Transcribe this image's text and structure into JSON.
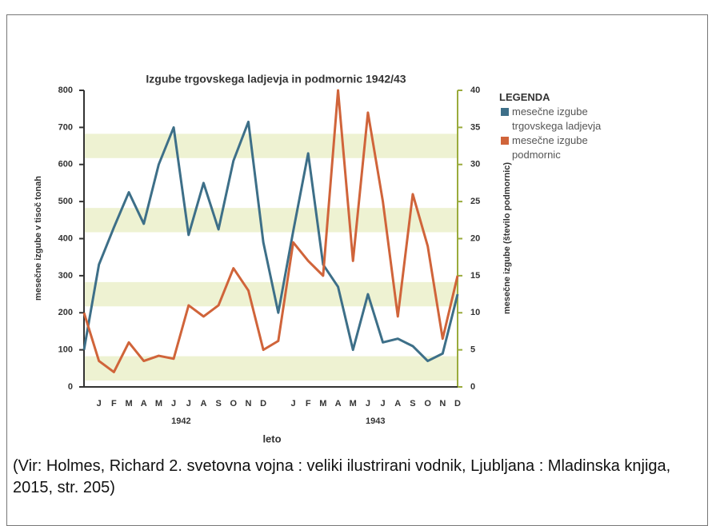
{
  "chart_data": {
    "type": "line",
    "title": "Izgube trgovskega ladjevja in podmornic 1942/43",
    "xlabel": "leto",
    "ylabel": "mesečne izgube v tisoč tonah",
    "y2label": "mesečne izgube (število podmornic)",
    "legend_title": "LEGENDA",
    "categories": [
      null,
      "J",
      "F",
      "M",
      "A",
      "M",
      "J",
      "J",
      "A",
      "S",
      "O",
      "N",
      "D",
      null,
      "J",
      "F",
      "M",
      "A",
      "M",
      "J",
      "J",
      "A",
      "S",
      "O",
      "N",
      "D"
    ],
    "x_groups": [
      "1942",
      "1943"
    ],
    "series": [
      {
        "name": "mesečne izgube trgovskega ladjevja",
        "color": "#3d6f88",
        "values": [
          100,
          330,
          430,
          525,
          440,
          600,
          700,
          410,
          550,
          425,
          610,
          715,
          390,
          200,
          420,
          630,
          330,
          270,
          100,
          250,
          120,
          130,
          110,
          70,
          90,
          250
        ]
      },
      {
        "name": "mesečne izgube podmornic",
        "color": "#d0643a",
        "axis": "y2",
        "values": [
          10,
          3.5,
          2,
          6,
          3.5,
          4.2,
          3.8,
          11,
          9.5,
          11,
          16,
          13,
          5,
          6.2,
          19.5,
          17,
          15,
          40,
          17,
          37,
          25,
          9.5,
          26,
          19,
          6.5,
          15
        ]
      }
    ],
    "ylim": [
      0,
      800
    ],
    "yticks": [
      0,
      100,
      200,
      300,
      400,
      500,
      600,
      700,
      800
    ],
    "y2lim": [
      0,
      40
    ],
    "y2ticks": [
      0,
      5,
      10,
      15,
      20,
      25,
      30,
      35,
      40
    ]
  },
  "caption": "(Vir: Holmes, Richard 2. svetovna vojna : veliki ilustrirani vodnik, Ljubljana : Mladinska knjiga, 2015, str. 205)"
}
